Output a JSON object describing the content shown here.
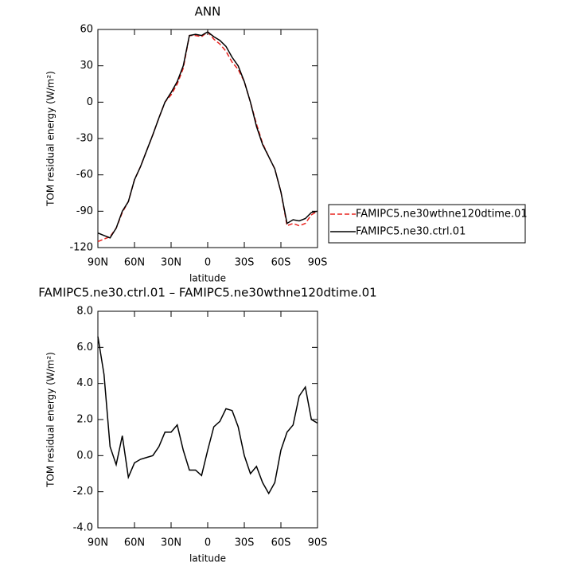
{
  "chart_data": [
    {
      "type": "line",
      "title": "ANN",
      "xlabel": "latitude",
      "ylabel": "TOM residual energy (W/m²)",
      "x": [
        90,
        85,
        80,
        75,
        70,
        65,
        60,
        55,
        50,
        45,
        40,
        35,
        30,
        25,
        20,
        15,
        10,
        5,
        0,
        -5,
        -10,
        -15,
        -20,
        -25,
        -30,
        -35,
        -40,
        -45,
        -50,
        -55,
        -60,
        -65,
        -70,
        -75,
        -80,
        -85,
        -90
      ],
      "xlim": [
        90,
        -90
      ],
      "xticks": [
        {
          "value": 90,
          "label": "90N"
        },
        {
          "value": 60,
          "label": "60N"
        },
        {
          "value": 30,
          "label": "30N"
        },
        0,
        {
          "value": -30,
          "label": "30S"
        },
        {
          "value": -60,
          "label": "60S"
        },
        {
          "value": -90,
          "label": "90S"
        }
      ],
      "ylim": [
        -120,
        60
      ],
      "yticks": [
        -120,
        -90,
        -60,
        -30,
        0,
        30,
        60
      ],
      "series": [
        {
          "name": "FAMIPC5.ne30wthne120dtime.01",
          "color": "#e8231f",
          "dashed": true,
          "values": [
            -115,
            -113,
            -111,
            -104,
            -91,
            -82,
            -64,
            -53,
            -40,
            -27,
            -13,
            0,
            6,
            15,
            28,
            55,
            55,
            54,
            58,
            52,
            48,
            42,
            33,
            27,
            17,
            0,
            -18,
            -34,
            -45,
            -55,
            -74,
            -102,
            -100,
            -102,
            -100,
            -93,
            -90
          ]
        },
        {
          "name": "FAMIPC5.ne30.ctrl.01",
          "color": "#000000",
          "dashed": false,
          "values": [
            -108,
            -110,
            -112,
            -104,
            -90,
            -82,
            -64,
            -53,
            -40,
            -27,
            -13,
            0,
            8,
            17,
            30,
            55,
            56,
            55,
            58,
            54,
            51,
            46,
            37,
            30,
            17,
            0,
            -20,
            -35,
            -45,
            -55,
            -74,
            -100,
            -97,
            -98,
            -96,
            -91,
            -90
          ]
        }
      ]
    },
    {
      "type": "line",
      "title": "FAMIPC5.ne30.ctrl.01 – FAMIPC5.ne30wthne120dtime.01",
      "xlabel": "latitude",
      "ylabel": "TOM residual energy (W/m²)",
      "x": [
        90,
        85,
        80,
        75,
        70,
        65,
        60,
        55,
        50,
        45,
        40,
        35,
        30,
        25,
        20,
        15,
        10,
        5,
        0,
        -5,
        -10,
        -15,
        -20,
        -25,
        -30,
        -35,
        -40,
        -45,
        -50,
        -55,
        -60,
        -65,
        -70,
        -75,
        -80,
        -85,
        -90
      ],
      "xlim": [
        90,
        -90
      ],
      "xticks": [
        {
          "value": 90,
          "label": "90N"
        },
        {
          "value": 60,
          "label": "60N"
        },
        {
          "value": 30,
          "label": "30N"
        },
        0,
        {
          "value": -30,
          "label": "30S"
        },
        {
          "value": -60,
          "label": "60S"
        },
        {
          "value": -90,
          "label": "90S"
        }
      ],
      "ylim": [
        -4,
        8
      ],
      "yticks": [
        {
          "value": -4,
          "label": "-4.0"
        },
        {
          "value": -2,
          "label": "-2.0"
        },
        {
          "value": 0,
          "label": "0.0"
        },
        {
          "value": 2,
          "label": "2.0"
        },
        {
          "value": 4,
          "label": "4.0"
        },
        {
          "value": 6,
          "label": "6.0"
        },
        {
          "value": 8,
          "label": "8.0"
        }
      ],
      "series": [
        {
          "color": "#000000",
          "dashed": false,
          "values": [
            6.6,
            4.5,
            0.5,
            -0.5,
            1.1,
            -1.2,
            -0.4,
            -0.2,
            -0.1,
            0.0,
            0.5,
            1.3,
            1.3,
            1.7,
            0.3,
            -0.8,
            -0.8,
            -1.1,
            0.3,
            1.6,
            1.9,
            2.6,
            2.5,
            1.6,
            0.0,
            -1.0,
            -0.6,
            -1.5,
            -2.1,
            -1.5,
            0.3,
            1.3,
            1.7,
            3.3,
            3.8,
            2.0,
            1.8
          ]
        }
      ]
    }
  ]
}
